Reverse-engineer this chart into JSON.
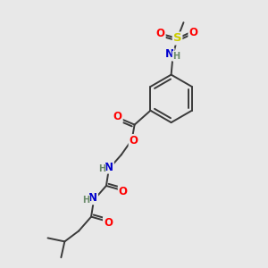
{
  "bg_color": "#e8e8e8",
  "bond_color": "#3a3a3a",
  "bond_width": 1.4,
  "atom_colors": {
    "O": "#ff0000",
    "N": "#0000cd",
    "S": "#cccc00",
    "H": "#6a8a6a",
    "C": "#3a3a3a"
  },
  "font_size_atom": 8.5,
  "font_size_H": 7.0
}
